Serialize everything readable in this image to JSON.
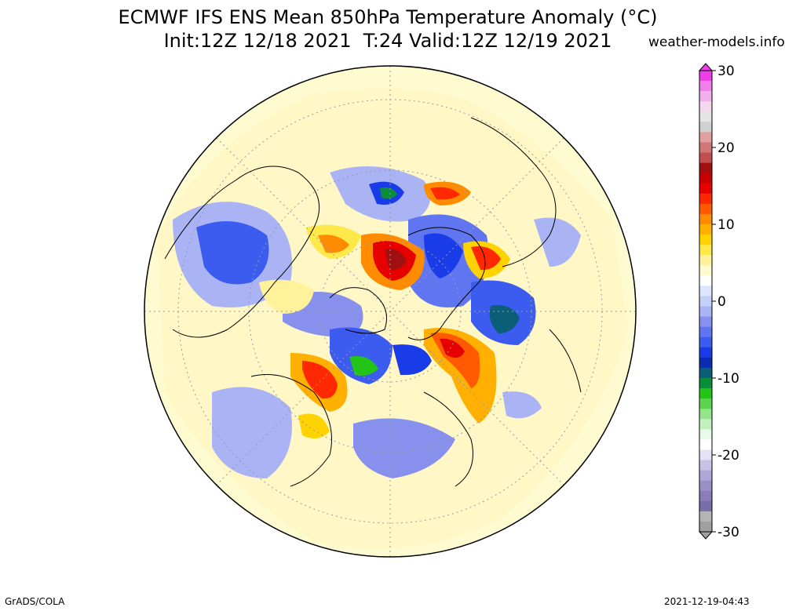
{
  "header": {
    "title_line1": "ECMWF IFS ENS Mean 850hPa Temperature Anomaly (°C)",
    "title_line2": "Init:12Z 12/18 2021  T:24 Valid:12Z 12/19 2021",
    "site": "weather-models.info"
  },
  "colorbar": {
    "min": -30,
    "max": 30,
    "tick_labels": [
      "30",
      "20",
      "10",
      "0",
      "-10",
      "-20",
      "-30"
    ],
    "tick_values": [
      30,
      20,
      10,
      0,
      -10,
      -20,
      -30
    ],
    "colors": [
      "#a0a0a0",
      "#b4b4b4",
      "#7a6ea8",
      "#8a7cb8",
      "#9c8fc8",
      "#b0a6d8",
      "#c8c2e6",
      "#e4e2f4",
      "#ffffff",
      "#e8fae8",
      "#c4f0c0",
      "#94e48a",
      "#5cd44e",
      "#22c418",
      "#0a8e3a",
      "#0a5e78",
      "#0a2cb0",
      "#1a3ce8",
      "#3c5cf0",
      "#6076f0",
      "#8890ee",
      "#aab4f4",
      "#c4d0f8",
      "#dce6fc",
      "#ffffff",
      "#fffbd0",
      "#fff29a",
      "#ffe84a",
      "#ffd200",
      "#ffb000",
      "#ff8c00",
      "#ff5a00",
      "#ff2800",
      "#e60000",
      "#c80000",
      "#a01010",
      "#c05050",
      "#d07878",
      "#e0a0a0",
      "#d0d0d0",
      "#e4e4e4",
      "#f4d8f0",
      "#f0b0ec",
      "#f080e8",
      "#ee40e6"
    ]
  },
  "footer": {
    "left": "GrADS/COLA",
    "right": "2021-12-19-04:43"
  }
}
